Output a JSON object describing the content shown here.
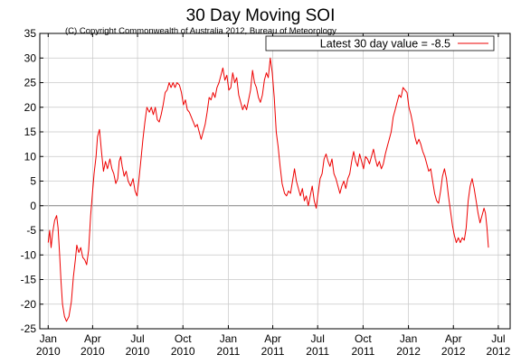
{
  "title": "30 Day Moving SOI",
  "copyright": "(C) Copyright Commonwealth of Australia 2012, Bureau of Meteorology",
  "colors": {
    "background": "#ffffff",
    "series": "#ee0000",
    "grid": "#c8c8c8",
    "zero_line": "#808080",
    "axis": "#000000"
  },
  "chart_data": {
    "type": "line",
    "title": "30 Day Moving SOI",
    "xlabel": "",
    "ylabel": "",
    "ylim": [
      -25,
      35
    ],
    "y_ticks": [
      35,
      30,
      25,
      20,
      15,
      10,
      5,
      0,
      -5,
      -10,
      -15,
      -20,
      -25
    ],
    "x_range_months": [
      "2009-12-15",
      "2012-07-25"
    ],
    "x_ticks": [
      {
        "date": "2010-01-01",
        "label_month": "Jan",
        "label_year": "2010"
      },
      {
        "date": "2010-04-01",
        "label_month": "Apr",
        "label_year": "2010"
      },
      {
        "date": "2010-07-01",
        "label_month": "Jul",
        "label_year": "2010"
      },
      {
        "date": "2010-10-01",
        "label_month": "Oct",
        "label_year": "2010"
      },
      {
        "date": "2011-01-01",
        "label_month": "Jan",
        "label_year": "2011"
      },
      {
        "date": "2011-04-01",
        "label_month": "Apr",
        "label_year": "2011"
      },
      {
        "date": "2011-07-01",
        "label_month": "Jul",
        "label_year": "2011"
      },
      {
        "date": "2011-10-01",
        "label_month": "Oct",
        "label_year": "2011"
      },
      {
        "date": "2012-01-01",
        "label_month": "Jan",
        "label_year": "2012"
      },
      {
        "date": "2012-04-01",
        "label_month": "Apr",
        "label_year": "2012"
      },
      {
        "date": "2012-07-01",
        "label_month": "Jul",
        "label_year": "2012"
      }
    ],
    "grid": true,
    "legend": {
      "position": "top-right",
      "entries": [
        "Latest 30 day value = -8.5"
      ]
    },
    "series": [
      {
        "name": "Latest 30 day value = -8.5",
        "points": [
          [
            "2010-01-01",
            -7.5
          ],
          [
            "2010-01-04",
            -5.0
          ],
          [
            "2010-01-07",
            -8.5
          ],
          [
            "2010-01-10",
            -5.5
          ],
          [
            "2010-01-14",
            -3.0
          ],
          [
            "2010-01-18",
            -2.0
          ],
          [
            "2010-01-21",
            -4.5
          ],
          [
            "2010-01-24",
            -9.5
          ],
          [
            "2010-01-27",
            -15.5
          ],
          [
            "2010-01-30",
            -20.0
          ],
          [
            "2010-02-03",
            -22.5
          ],
          [
            "2010-02-07",
            -23.5
          ],
          [
            "2010-02-12",
            -22.5
          ],
          [
            "2010-02-17",
            -19.5
          ],
          [
            "2010-02-21",
            -14.5
          ],
          [
            "2010-02-25",
            -11.0
          ],
          [
            "2010-02-28",
            -8.0
          ],
          [
            "2010-03-04",
            -9.5
          ],
          [
            "2010-03-08",
            -8.5
          ],
          [
            "2010-03-12",
            -10.5
          ],
          [
            "2010-03-16",
            -11.0
          ],
          [
            "2010-03-20",
            -12.0
          ],
          [
            "2010-03-24",
            -9.0
          ],
          [
            "2010-03-28",
            -2.0
          ],
          [
            "2010-04-01",
            3.0
          ],
          [
            "2010-04-04",
            6.5
          ],
          [
            "2010-04-08",
            10.0
          ],
          [
            "2010-04-11",
            14.0
          ],
          [
            "2010-04-15",
            15.5
          ],
          [
            "2010-04-19",
            11.0
          ],
          [
            "2010-04-23",
            7.0
          ],
          [
            "2010-04-27",
            9.0
          ],
          [
            "2010-05-01",
            7.5
          ],
          [
            "2010-05-06",
            9.5
          ],
          [
            "2010-05-10",
            7.5
          ],
          [
            "2010-05-14",
            6.5
          ],
          [
            "2010-05-18",
            4.5
          ],
          [
            "2010-05-22",
            5.5
          ],
          [
            "2010-05-25",
            9.0
          ],
          [
            "2010-05-28",
            10.0
          ],
          [
            "2010-05-31",
            8.0
          ],
          [
            "2010-06-04",
            6.0
          ],
          [
            "2010-06-08",
            7.0
          ],
          [
            "2010-06-12",
            5.0
          ],
          [
            "2010-06-17",
            4.0
          ],
          [
            "2010-06-22",
            5.5
          ],
          [
            "2010-06-26",
            3.0
          ],
          [
            "2010-06-30",
            2.0
          ],
          [
            "2010-07-04",
            5.5
          ],
          [
            "2010-07-08",
            9.5
          ],
          [
            "2010-07-12",
            13.5
          ],
          [
            "2010-07-16",
            17.0
          ],
          [
            "2010-07-20",
            20.0
          ],
          [
            "2010-07-25",
            19.0
          ],
          [
            "2010-07-29",
            20.0
          ],
          [
            "2010-08-02",
            18.5
          ],
          [
            "2010-08-06",
            20.0
          ],
          [
            "2010-08-10",
            17.5
          ],
          [
            "2010-08-14",
            17.0
          ],
          [
            "2010-08-18",
            18.5
          ],
          [
            "2010-08-22",
            20.5
          ],
          [
            "2010-08-26",
            23.0
          ],
          [
            "2010-08-30",
            23.5
          ],
          [
            "2010-09-03",
            25.0
          ],
          [
            "2010-09-07",
            24.0
          ],
          [
            "2010-09-11",
            25.0
          ],
          [
            "2010-09-15",
            24.0
          ],
          [
            "2010-09-19",
            25.0
          ],
          [
            "2010-09-24",
            24.5
          ],
          [
            "2010-09-28",
            23.0
          ],
          [
            "2010-10-02",
            20.5
          ],
          [
            "2010-10-06",
            21.5
          ],
          [
            "2010-10-10",
            19.5
          ],
          [
            "2010-10-14",
            19.0
          ],
          [
            "2010-10-18",
            18.0
          ],
          [
            "2010-10-22",
            17.0
          ],
          [
            "2010-10-26",
            16.0
          ],
          [
            "2010-10-30",
            16.5
          ],
          [
            "2010-11-03",
            15.0
          ],
          [
            "2010-11-07",
            13.5
          ],
          [
            "2010-11-11",
            15.0
          ],
          [
            "2010-11-15",
            16.5
          ],
          [
            "2010-11-19",
            19.0
          ],
          [
            "2010-11-23",
            22.0
          ],
          [
            "2010-11-27",
            21.5
          ],
          [
            "2010-12-01",
            23.0
          ],
          [
            "2010-12-05",
            22.0
          ],
          [
            "2010-12-09",
            24.0
          ],
          [
            "2010-12-13",
            25.0
          ],
          [
            "2010-12-17",
            26.5
          ],
          [
            "2010-12-21",
            28.0
          ],
          [
            "2010-12-25",
            25.5
          ],
          [
            "2010-12-29",
            26.5
          ],
          [
            "2011-01-02",
            23.5
          ],
          [
            "2011-01-06",
            24.0
          ],
          [
            "2011-01-10",
            27.0
          ],
          [
            "2011-01-14",
            25.0
          ],
          [
            "2011-01-18",
            26.0
          ],
          [
            "2011-01-22",
            22.5
          ],
          [
            "2011-01-26",
            21.0
          ],
          [
            "2011-01-30",
            19.5
          ],
          [
            "2011-02-03",
            20.5
          ],
          [
            "2011-02-07",
            19.5
          ],
          [
            "2011-02-11",
            21.5
          ],
          [
            "2011-02-15",
            23.5
          ],
          [
            "2011-02-19",
            27.5
          ],
          [
            "2011-02-23",
            25.0
          ],
          [
            "2011-02-27",
            24.0
          ],
          [
            "2011-03-03",
            22.0
          ],
          [
            "2011-03-07",
            21.0
          ],
          [
            "2011-03-11",
            22.5
          ],
          [
            "2011-03-15",
            25.5
          ],
          [
            "2011-03-19",
            27.0
          ],
          [
            "2011-03-23",
            26.0
          ],
          [
            "2011-03-27",
            30.0
          ],
          [
            "2011-03-31",
            27.0
          ],
          [
            "2011-04-04",
            22.0
          ],
          [
            "2011-04-08",
            15.0
          ],
          [
            "2011-04-12",
            12.0
          ],
          [
            "2011-04-16",
            8.0
          ],
          [
            "2011-04-20",
            4.5
          ],
          [
            "2011-04-25",
            2.5
          ],
          [
            "2011-04-29",
            2.0
          ],
          [
            "2011-05-03",
            3.0
          ],
          [
            "2011-05-07",
            2.5
          ],
          [
            "2011-05-11",
            5.0
          ],
          [
            "2011-05-15",
            7.5
          ],
          [
            "2011-05-19",
            5.0
          ],
          [
            "2011-05-23",
            3.5
          ],
          [
            "2011-05-27",
            2.0
          ],
          [
            "2011-05-31",
            3.5
          ],
          [
            "2011-06-04",
            1.0
          ],
          [
            "2011-06-08",
            2.0
          ],
          [
            "2011-06-12",
            0.0
          ],
          [
            "2011-06-16",
            2.0
          ],
          [
            "2011-06-20",
            4.0
          ],
          [
            "2011-06-24",
            1.0
          ],
          [
            "2011-06-28",
            -0.5
          ],
          [
            "2011-07-02",
            2.5
          ],
          [
            "2011-07-06",
            5.5
          ],
          [
            "2011-07-10",
            6.5
          ],
          [
            "2011-07-14",
            9.5
          ],
          [
            "2011-07-18",
            10.5
          ],
          [
            "2011-07-22",
            9.0
          ],
          [
            "2011-07-26",
            8.0
          ],
          [
            "2011-07-30",
            9.5
          ],
          [
            "2011-08-03",
            6.5
          ],
          [
            "2011-08-07",
            5.5
          ],
          [
            "2011-08-11",
            4.0
          ],
          [
            "2011-08-15",
            2.5
          ],
          [
            "2011-08-19",
            4.0
          ],
          [
            "2011-08-23",
            5.0
          ],
          [
            "2011-08-27",
            3.5
          ],
          [
            "2011-08-31",
            5.5
          ],
          [
            "2011-09-04",
            6.5
          ],
          [
            "2011-09-08",
            9.0
          ],
          [
            "2011-09-12",
            11.0
          ],
          [
            "2011-09-16",
            9.0
          ],
          [
            "2011-09-20",
            8.0
          ],
          [
            "2011-09-24",
            10.5
          ],
          [
            "2011-09-28",
            9.0
          ],
          [
            "2011-10-02",
            7.5
          ],
          [
            "2011-10-06",
            10.0
          ],
          [
            "2011-10-10",
            9.5
          ],
          [
            "2011-10-14",
            8.5
          ],
          [
            "2011-10-18",
            10.0
          ],
          [
            "2011-10-22",
            11.5
          ],
          [
            "2011-10-26",
            9.5
          ],
          [
            "2011-10-30",
            8.0
          ],
          [
            "2011-11-03",
            9.0
          ],
          [
            "2011-11-07",
            7.5
          ],
          [
            "2011-11-11",
            8.5
          ],
          [
            "2011-11-15",
            10.5
          ],
          [
            "2011-11-19",
            12.0
          ],
          [
            "2011-11-23",
            13.5
          ],
          [
            "2011-11-27",
            15.0
          ],
          [
            "2011-12-01",
            18.0
          ],
          [
            "2011-12-05",
            19.5
          ],
          [
            "2011-12-09",
            21.0
          ],
          [
            "2011-12-13",
            22.5
          ],
          [
            "2011-12-17",
            22.0
          ],
          [
            "2011-12-21",
            24.0
          ],
          [
            "2011-12-25",
            23.5
          ],
          [
            "2011-12-29",
            23.0
          ],
          [
            "2012-01-02",
            20.0
          ],
          [
            "2012-01-06",
            18.5
          ],
          [
            "2012-01-10",
            16.5
          ],
          [
            "2012-01-14",
            14.0
          ],
          [
            "2012-01-18",
            12.5
          ],
          [
            "2012-01-22",
            13.5
          ],
          [
            "2012-01-26",
            12.5
          ],
          [
            "2012-01-30",
            11.0
          ],
          [
            "2012-02-03",
            10.0
          ],
          [
            "2012-02-07",
            8.5
          ],
          [
            "2012-02-11",
            7.0
          ],
          [
            "2012-02-15",
            7.5
          ],
          [
            "2012-02-19",
            5.0
          ],
          [
            "2012-02-23",
            2.5
          ],
          [
            "2012-02-27",
            1.0
          ],
          [
            "2012-03-02",
            0.5
          ],
          [
            "2012-03-06",
            3.0
          ],
          [
            "2012-03-10",
            6.0
          ],
          [
            "2012-03-14",
            7.5
          ],
          [
            "2012-03-18",
            5.5
          ],
          [
            "2012-03-22",
            2.0
          ],
          [
            "2012-03-26",
            -1.0
          ],
          [
            "2012-03-30",
            -4.0
          ],
          [
            "2012-04-03",
            -6.0
          ],
          [
            "2012-04-07",
            -7.5
          ],
          [
            "2012-04-11",
            -6.5
          ],
          [
            "2012-04-15",
            -7.5
          ],
          [
            "2012-04-19",
            -6.5
          ],
          [
            "2012-04-23",
            -7.0
          ],
          [
            "2012-04-27",
            -4.5
          ],
          [
            "2012-05-01",
            1.0
          ],
          [
            "2012-05-05",
            4.0
          ],
          [
            "2012-05-09",
            5.5
          ],
          [
            "2012-05-13",
            3.5
          ],
          [
            "2012-05-17",
            1.0
          ],
          [
            "2012-05-21",
            -1.5
          ],
          [
            "2012-05-25",
            -3.5
          ],
          [
            "2012-05-29",
            -2.0
          ],
          [
            "2012-06-02",
            -0.5
          ],
          [
            "2012-06-05",
            -1.5
          ],
          [
            "2012-06-08",
            -4.5
          ],
          [
            "2012-06-11",
            -8.5
          ]
        ]
      }
    ]
  }
}
